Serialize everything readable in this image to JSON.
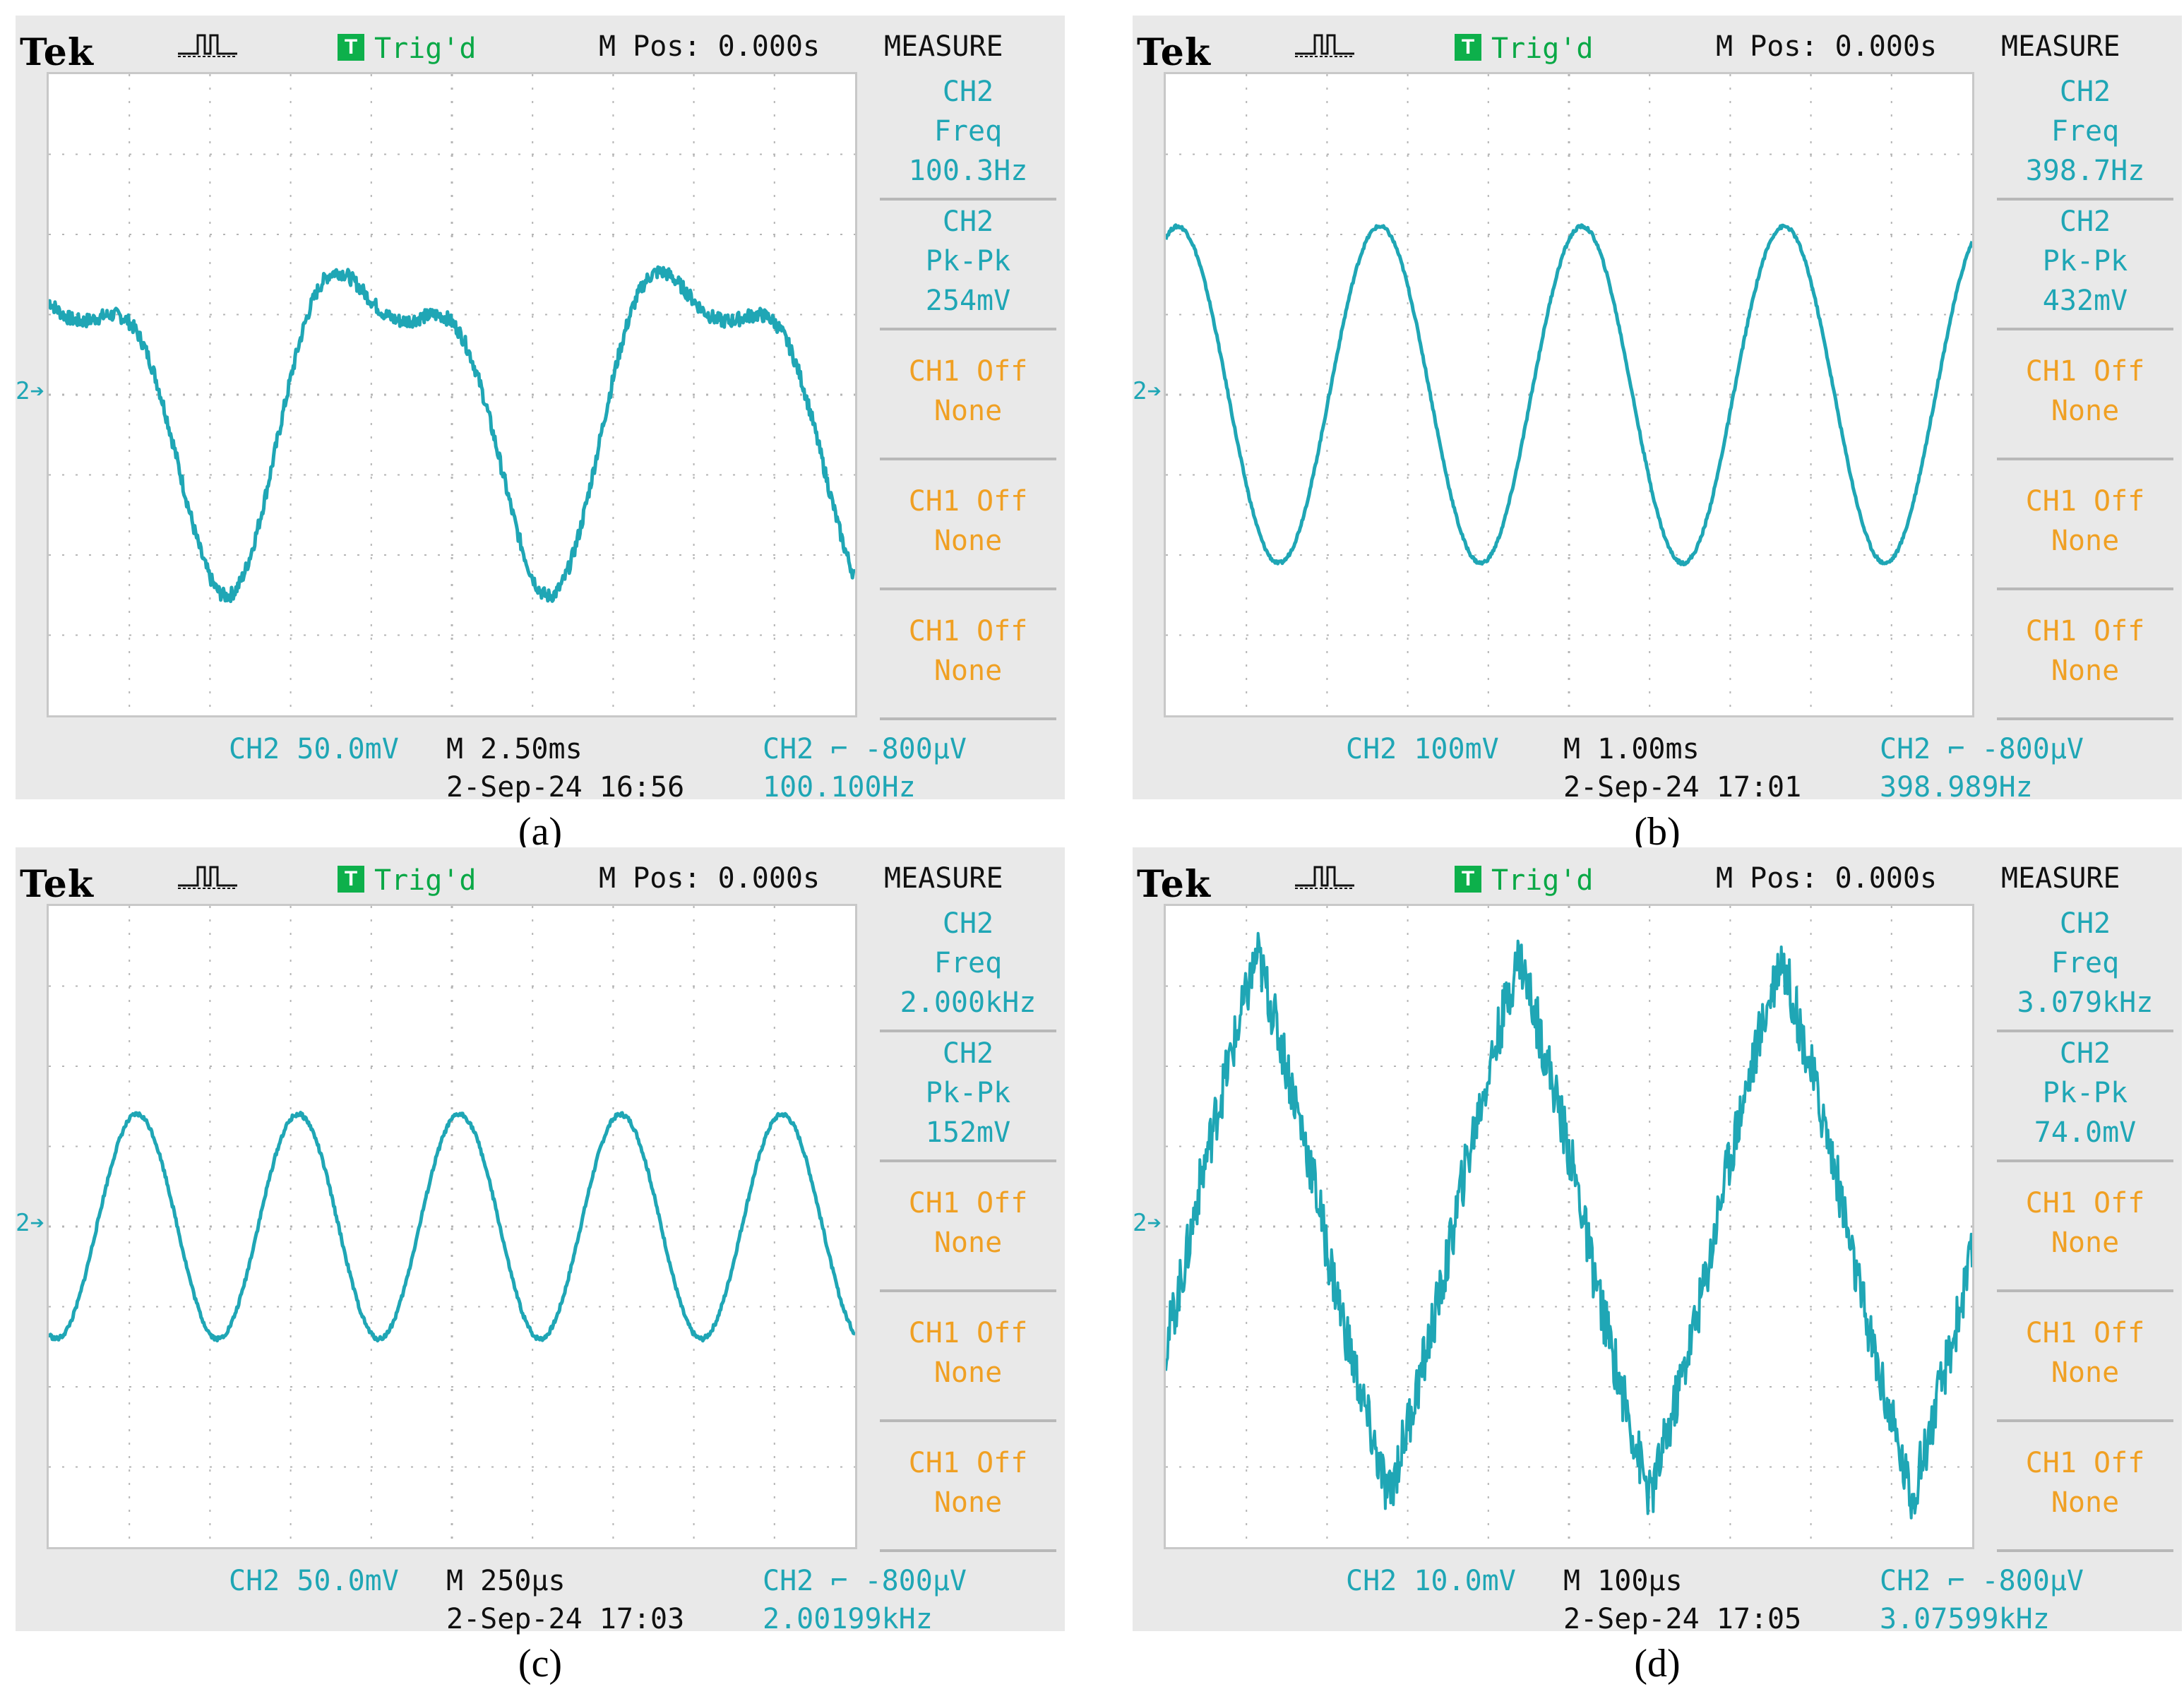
{
  "figure": {
    "panels": [
      {
        "id": "a",
        "caption": "(a)",
        "header": {
          "brand": "Tek",
          "trigger_badge": "T",
          "trigger_status": "Trig'd",
          "mpos": "M Pos: 0.000s",
          "menu_title": "MEASURE"
        },
        "channel_marker": "2",
        "measurements": [
          {
            "lines": [
              "CH2",
              "Freq",
              "100.3Hz"
            ],
            "color": "#1fa6b5"
          },
          {
            "lines": [
              "CH2",
              "Pk-Pk",
              "254mV"
            ],
            "color": "#1fa6b5"
          },
          {
            "lines": [
              "CH1 Off",
              "None"
            ],
            "color": "#f0a023"
          },
          {
            "lines": [
              "CH1 Off",
              "None"
            ],
            "color": "#f0a023"
          },
          {
            "lines": [
              "CH1 Off",
              "None"
            ],
            "color": "#f0a023"
          }
        ],
        "footer": {
          "ch_scale": "CH2  50.0mV",
          "timebase": "M 2.50ms",
          "datetime": "2-Sep-24 16:56",
          "trigger_level": "CH2 ⌐ -800μV",
          "trigger_freq": "100.100Hz"
        },
        "waveform": {
          "shape": "distorted",
          "periods_on_screen": 2.5,
          "amplitude_divs": 2.2,
          "noise": 0.04
        }
      },
      {
        "id": "b",
        "caption": "(b)",
        "header": {
          "brand": "Tek",
          "trigger_badge": "T",
          "trigger_status": "Trig'd",
          "mpos": "M Pos: 0.000s",
          "menu_title": "MEASURE"
        },
        "channel_marker": "2",
        "measurements": [
          {
            "lines": [
              "CH2",
              "Freq",
              "398.7Hz"
            ],
            "color": "#1fa6b5"
          },
          {
            "lines": [
              "CH2",
              "Pk-Pk",
              "432mV"
            ],
            "color": "#1fa6b5"
          },
          {
            "lines": [
              "CH1 Off",
              "None"
            ],
            "color": "#f0a023"
          },
          {
            "lines": [
              "CH1 Off",
              "None"
            ],
            "color": "#f0a023"
          },
          {
            "lines": [
              "CH1 Off",
              "None"
            ],
            "color": "#f0a023"
          }
        ],
        "footer": {
          "ch_scale": "CH2  100mV",
          "timebase": "M 1.00ms",
          "datetime": "2-Sep-24 17:01",
          "trigger_level": "CH2 ⌐ -800μV",
          "trigger_freq": "398.989Hz"
        },
        "waveform": {
          "shape": "sine",
          "periods_on_screen": 3.99,
          "amplitude_divs": 2.1,
          "noise": 0.01
        }
      },
      {
        "id": "c",
        "caption": "(c)",
        "header": {
          "brand": "Tek",
          "trigger_badge": "T",
          "trigger_status": "Trig'd",
          "mpos": "M Pos: 0.000s",
          "menu_title": "MEASURE"
        },
        "channel_marker": "2",
        "measurements": [
          {
            "lines": [
              "CH2",
              "Freq",
              "2.000kHz"
            ],
            "color": "#1fa6b5"
          },
          {
            "lines": [
              "CH2",
              "Pk-Pk",
              "152mV"
            ],
            "color": "#1fa6b5"
          },
          {
            "lines": [
              "CH1 Off",
              "None"
            ],
            "color": "#f0a023"
          },
          {
            "lines": [
              "CH1 Off",
              "None"
            ],
            "color": "#f0a023"
          },
          {
            "lines": [
              "CH1 Off",
              "None"
            ],
            "color": "#f0a023"
          }
        ],
        "footer": {
          "ch_scale": "CH2  50.0mV",
          "timebase": "M 250μs",
          "datetime": "2-Sep-24 17:03",
          "trigger_level": "CH2 ⌐ -800μV",
          "trigger_freq": "2.00199kHz"
        },
        "waveform": {
          "shape": "sine",
          "periods_on_screen": 5.0,
          "amplitude_divs": 1.4,
          "noise": 0.02
        }
      },
      {
        "id": "d",
        "caption": "(d)",
        "header": {
          "brand": "Tek",
          "trigger_badge": "T",
          "trigger_status": "Trig'd",
          "mpos": "M Pos: 0.000s",
          "menu_title": "MEASURE"
        },
        "channel_marker": "2",
        "measurements": [
          {
            "lines": [
              "CH2",
              "Freq",
              "3.079kHz"
            ],
            "color": "#1fa6b5"
          },
          {
            "lines": [
              "CH2",
              "Pk-Pk",
              "74.0mV"
            ],
            "color": "#1fa6b5"
          },
          {
            "lines": [
              "CH1 Off",
              "None"
            ],
            "color": "#f0a023"
          },
          {
            "lines": [
              "CH1 Off",
              "None"
            ],
            "color": "#f0a023"
          },
          {
            "lines": [
              "CH1 Off",
              "None"
            ],
            "color": "#f0a023"
          }
        ],
        "footer": {
          "ch_scale": "CH2  10.0mV",
          "timebase": "M 100μs",
          "datetime": "2-Sep-24 17:05",
          "trigger_level": "CH2 ⌐ -800μV",
          "trigger_freq": "3.07599kHz"
        },
        "waveform": {
          "shape": "triangle",
          "periods_on_screen": 3.08,
          "amplitude_divs": 3.4,
          "noise": 0.1
        }
      }
    ],
    "colors": {
      "trace": "#1fa6b5",
      "menu_off": "#f0a023",
      "trig_green": "#0db04b",
      "bezel": "#e9e9e9"
    }
  }
}
